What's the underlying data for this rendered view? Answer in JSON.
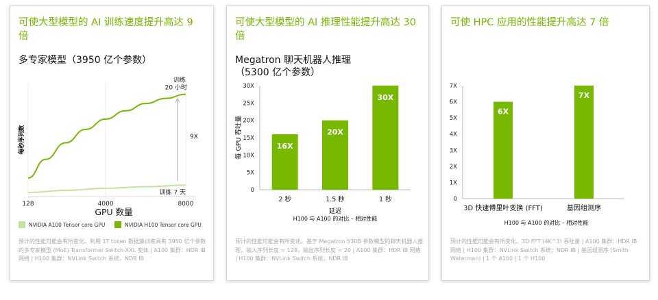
{
  "colors": {
    "accent": "#76b900",
    "light": "#c2e3a0",
    "bar": "#76b900",
    "grid": "#d9d9d9"
  },
  "card1": {
    "headline": "可使大型模型的 AI 训练速度提升高达 9 倍",
    "subtitle": "多专家模型（3950 亿个参数）",
    "footnote": "预计的性能可能会有所变化。利用 1T token 数据集训练具有 3950 亿个参数的多专家模型 (MoE) Transformer Switch-XXL 变体 | A100 集群：HDR IB 网络 | H100 集群：NVLink Switch 系统，NDR IB",
    "legend": [
      {
        "label": "NVIDIA A100 Tensor core GPU",
        "color": "#c2e3a0"
      },
      {
        "label": "NVIDIA H100 Tensor core GPU",
        "color": "#76b900"
      }
    ]
  },
  "card2": {
    "headline": "可使大型模型的 AI 推理性能提升高达 30 倍",
    "subtitle": "Megatron 聊天机器人推理（5300 亿个参数）",
    "footnote": "预计的性能可能会有所变化。基于 Megatron 530B 参数模型的聊天机器人推理，输入序列长度 = 128，输出序列长度 = 20 | A100 集群：HDR IB 网络 | H100 集群：NVLink Switch 系统，NDR IB"
  },
  "card3": {
    "headline": "可使 HPC 应用的性能提升高达 7 倍",
    "footnote": "预计的性能可能会有所变化。3D FFT (4K^3) 吞吐量 | A100 集群：HDR IB 网络 | H100 集群：NVLink Switch 系统，NDR IB | 基因组测序 (Smith-Waterman) | 1 个 A100 | 1 个 H100"
  },
  "chart_data": [
    {
      "type": "line",
      "xlabel": "GPU 数量",
      "ylabel": "每秒序列数",
      "x_ticks": [
        "128",
        "4000",
        "8000"
      ],
      "series": [
        {
          "name": "NVIDIA A100 Tensor core GPU",
          "x": [
            128,
            2000,
            4000,
            6000,
            8000
          ],
          "values": [
            0.4,
            0.6,
            0.8,
            0.95,
            1.1
          ]
        },
        {
          "name": "NVIDIA H100 Tensor core GPU",
          "x": [
            128,
            1000,
            2000,
            3000,
            4000,
            5000,
            6000,
            7000,
            8000
          ],
          "values": [
            1.8,
            3.6,
            5.2,
            6.5,
            7.5,
            8.3,
            9.0,
            9.5,
            9.9
          ]
        }
      ],
      "ylim": [
        0,
        11
      ],
      "annotations": {
        "top": "训练\n20 小时",
        "bottom": "训练 7 天",
        "ratio": "9X"
      }
    },
    {
      "type": "bar",
      "categories": [
        "2 秒",
        "1.5 秒",
        "1 秒"
      ],
      "values": [
        16,
        20,
        30
      ],
      "value_labels": [
        "16X",
        "20X",
        "30X"
      ],
      "ylim": [
        0,
        30
      ],
      "y_ticks": [
        "0",
        "5X",
        "10X",
        "15X",
        "20X",
        "25X",
        "30X"
      ],
      "ylabel": "每 GPU 吞吐量",
      "xlabel": "延迟",
      "note": "H100 与 A100 的对比 – 相对性能"
    },
    {
      "type": "bar",
      "categories": [
        "3D 快速傅里叶变换 (FFT)",
        "基因组测序"
      ],
      "values": [
        6,
        7
      ],
      "value_labels": [
        "6X",
        "7X"
      ],
      "ylim": [
        0,
        7
      ],
      "y_ticks": [
        "0",
        "1X",
        "2X",
        "3X",
        "4X",
        "5X",
        "6X",
        "7X"
      ],
      "note": "H100 与 A100 的对比 – 相对性能"
    }
  ]
}
